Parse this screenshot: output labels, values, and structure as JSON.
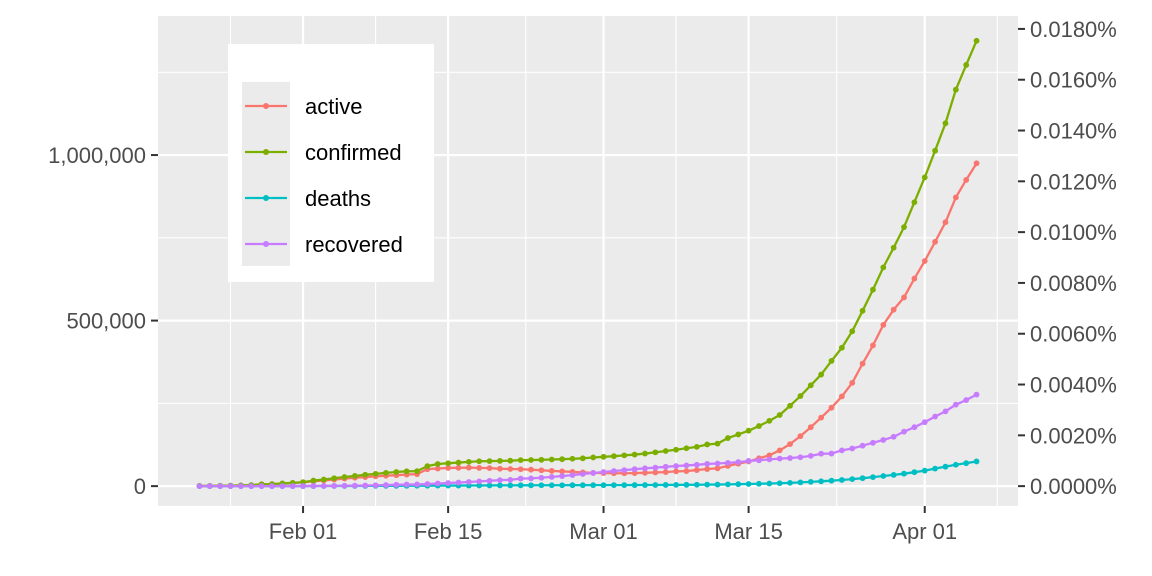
{
  "chart_data": {
    "type": "line",
    "x": [
      "2020-01-22",
      "2020-01-23",
      "2020-01-24",
      "2020-01-25",
      "2020-01-26",
      "2020-01-27",
      "2020-01-28",
      "2020-01-29",
      "2020-01-30",
      "2020-01-31",
      "2020-02-01",
      "2020-02-02",
      "2020-02-03",
      "2020-02-04",
      "2020-02-05",
      "2020-02-06",
      "2020-02-07",
      "2020-02-08",
      "2020-02-09",
      "2020-02-10",
      "2020-02-11",
      "2020-02-12",
      "2020-02-13",
      "2020-02-14",
      "2020-02-15",
      "2020-02-16",
      "2020-02-17",
      "2020-02-18",
      "2020-02-19",
      "2020-02-20",
      "2020-02-21",
      "2020-02-22",
      "2020-02-23",
      "2020-02-24",
      "2020-02-25",
      "2020-02-26",
      "2020-02-27",
      "2020-02-28",
      "2020-02-29",
      "2020-03-01",
      "2020-03-02",
      "2020-03-03",
      "2020-03-04",
      "2020-03-05",
      "2020-03-06",
      "2020-03-07",
      "2020-03-08",
      "2020-03-09",
      "2020-03-10",
      "2020-03-11",
      "2020-03-12",
      "2020-03-13",
      "2020-03-14",
      "2020-03-15",
      "2020-03-16",
      "2020-03-17",
      "2020-03-18",
      "2020-03-19",
      "2020-03-20",
      "2020-03-21",
      "2020-03-22",
      "2020-03-23",
      "2020-03-24",
      "2020-03-25",
      "2020-03-26",
      "2020-03-27",
      "2020-03-28",
      "2020-03-29",
      "2020-03-30",
      "2020-03-31",
      "2020-04-01",
      "2020-04-02",
      "2020-04-03",
      "2020-04-04",
      "2020-04-05",
      "2020-04-06"
    ],
    "series": [
      {
        "name": "active",
        "color": "#F8766D",
        "values": [
          510,
          610,
          870,
          1290,
          1970,
          2690,
          5520,
          5820,
          7770,
          9480,
          11300,
          14400,
          17000,
          19700,
          22900,
          25400,
          27400,
          29500,
          31500,
          33000,
          35000,
          36200,
          51300,
          53200,
          54900,
          55400,
          55800,
          55100,
          54400,
          52600,
          51800,
          51000,
          49600,
          47900,
          45900,
          44500,
          42800,
          41300,
          40000,
          39400,
          39000,
          38900,
          39400,
          40300,
          41300,
          42400,
          44600,
          45500,
          48500,
          51700,
          53800,
          61100,
          67700,
          74400,
          84000,
          93000,
          108000,
          127000,
          151000,
          178000,
          207000,
          237000,
          271000,
          312000,
          370000,
          425000,
          487000,
          533000,
          570000,
          627000,
          680000,
          738000,
          797000,
          872000,
          925000,
          975000
        ]
      },
      {
        "name": "confirmed",
        "color": "#7CAE00",
        "values": [
          555,
          654,
          941,
          1434,
          2118,
          2927,
          5578,
          6166,
          8234,
          9927,
          12038,
          16787,
          19881,
          23892,
          27635,
          30794,
          34391,
          37120,
          40150,
          42762,
          44802,
          45221,
          60368,
          66885,
          69030,
          71224,
          73258,
          75136,
          75639,
          76197,
          76819,
          78572,
          78958,
          79561,
          80406,
          81388,
          82746,
          84112,
          86604,
          88585,
          90443,
          93016,
          95314,
          98425,
          102050,
          106099,
          109991,
          114458,
          118578,
          125865,
          128343,
          145193,
          156097,
          167449,
          181546,
          197168,
          214915,
          242713,
          272167,
          304528,
          336953,
          378235,
          418045,
          467653,
          529591,
          593291,
          660706,
          720117,
          782365,
          857487,
          932605,
          1013157,
          1095917,
          1197405,
          1272115,
          1345101
        ]
      },
      {
        "name": "deaths",
        "color": "#00BFC4",
        "values": [
          17,
          18,
          26,
          42,
          56,
          82,
          131,
          133,
          171,
          213,
          259,
          362,
          426,
          492,
          564,
          634,
          719,
          806,
          906,
          1013,
          1113,
          1118,
          1371,
          1523,
          1666,
          1770,
          1868,
          2007,
          2122,
          2247,
          2251,
          2458,
          2469,
          2629,
          2708,
          2770,
          2814,
          2872,
          2941,
          2996,
          3085,
          3160,
          3254,
          3348,
          3460,
          3558,
          3802,
          3988,
          4262,
          4615,
          4720,
          5404,
          5819,
          6440,
          7126,
          7905,
          8733,
          9867,
          11299,
          12973,
          14623,
          16497,
          18615,
          21181,
          23970,
          27198,
          30652,
          33925,
          37582,
          42107,
          46809,
          52983,
          58787,
          64606,
          69374,
          74565
        ]
      },
      {
        "name": "recovered",
        "color": "#C77CFF",
        "values": [
          28,
          30,
          36,
          39,
          52,
          61,
          107,
          126,
          143,
          222,
          284,
          472,
          623,
          852,
          1124,
          1487,
          2011,
          2616,
          3244,
          3946,
          4683,
          5150,
          6295,
          8058,
          9395,
          10865,
          12583,
          14352,
          16121,
          18177,
          18890,
          22886,
          23394,
          25227,
          27905,
          30384,
          33277,
          36711,
          39782,
          42716,
          45602,
          48228,
          51170,
          53796,
          55865,
          58358,
          60694,
          62494,
          64404,
          67003,
          68324,
          70251,
          72624,
          76034,
          78088,
          80840,
          83207,
          84854,
          87256,
          91499,
          97882,
          98351,
          108000,
          113770,
          122150,
          130915,
          139415,
          149082,
          164566,
          178034,
          193177,
          210263,
          225796,
          246152,
          260012,
          276515
        ]
      }
    ],
    "yticks_left": [
      0,
      500000,
      1000000
    ],
    "yticks_left_labels": [
      "0",
      "500,000",
      "1,000,000"
    ],
    "yticks_right_labels": [
      "0.0000%",
      "0.0020%",
      "0.0040%",
      "0.0060%",
      "0.0080%",
      "0.0100%",
      "0.0120%",
      "0.0140%",
      "0.0160%",
      "0.0180%"
    ],
    "xticks": [
      "2020-02-01",
      "2020-02-15",
      "2020-03-01",
      "2020-03-15",
      "2020-04-01"
    ],
    "xtick_labels": [
      "Feb 01",
      "Feb 15",
      "Mar 01",
      "Mar 15",
      "Apr 01"
    ],
    "ylim": [
      -60000,
      1420000
    ],
    "xlim": [
      "2020-01-18",
      "2020-04-10"
    ],
    "legend": {
      "placement": "top-left",
      "entries": [
        "active",
        "confirmed",
        "deaths",
        "recovered"
      ]
    },
    "grid": true,
    "panel_background": "#EBEBEB",
    "title": "",
    "xlabel": "",
    "ylabel": ""
  }
}
